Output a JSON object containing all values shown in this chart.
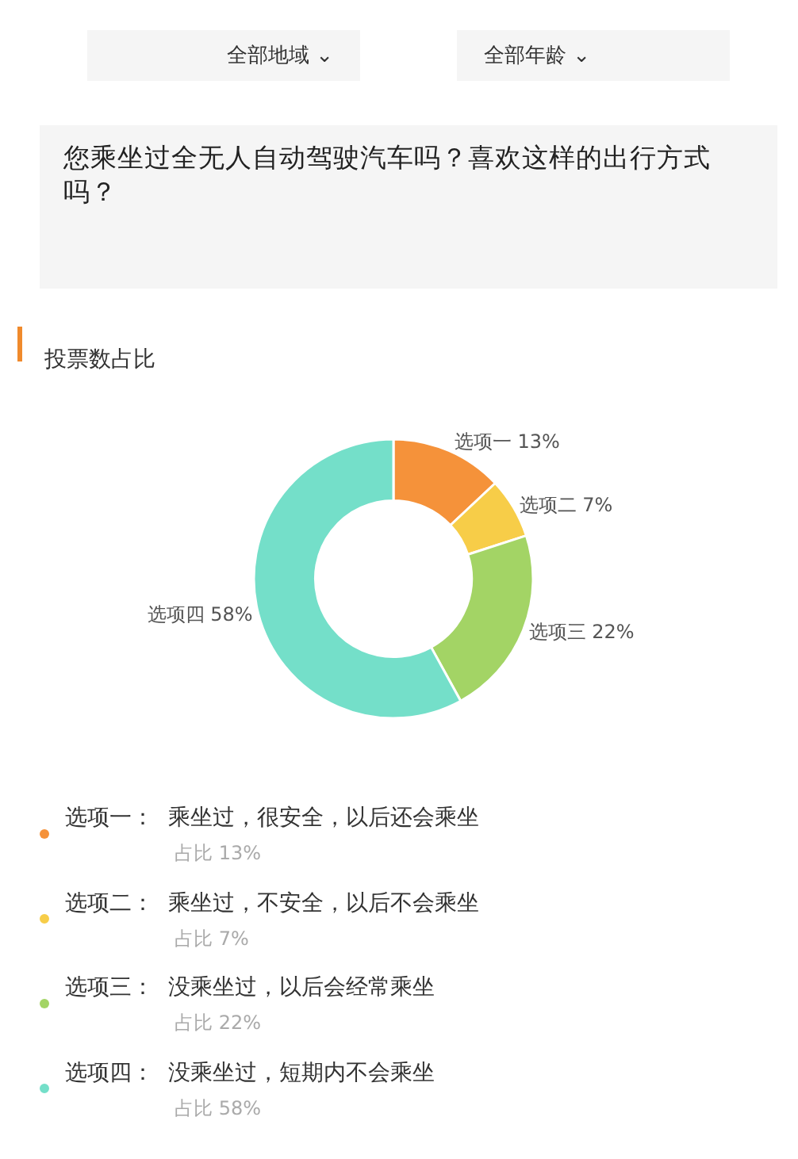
{
  "chart_data": {
    "type": "donut",
    "title": "您乘坐过全无人自动驾驶汽车吗？喜欢这样的出行方式吗？",
    "subtitle": "投票数占比",
    "categories": [
      "选项一",
      "选项二",
      "选项三",
      "选项四"
    ],
    "values": [
      13,
      7,
      22,
      58
    ],
    "value_labels": [
      "13%",
      "7%",
      "22%",
      "58%"
    ],
    "colors": [
      "#f5923a",
      "#f7cd48",
      "#a3d465",
      "#74dfc9"
    ],
    "annotations": [
      "全部地域 ⌄",
      "全部年龄 ⌄",
      "选项一：  乘坐过，很安全，以后还会乘坐",
      "占比 13%",
      "选项二：  乘坐过，不安全，以后不会乘坐",
      "占比 7%",
      "选项三：  没乘坐过，以后会经常乘坐",
      "占比 22%",
      "选项四：  没乘坐过，短期内不会乘坐",
      "占比 58%"
    ]
  }
}
